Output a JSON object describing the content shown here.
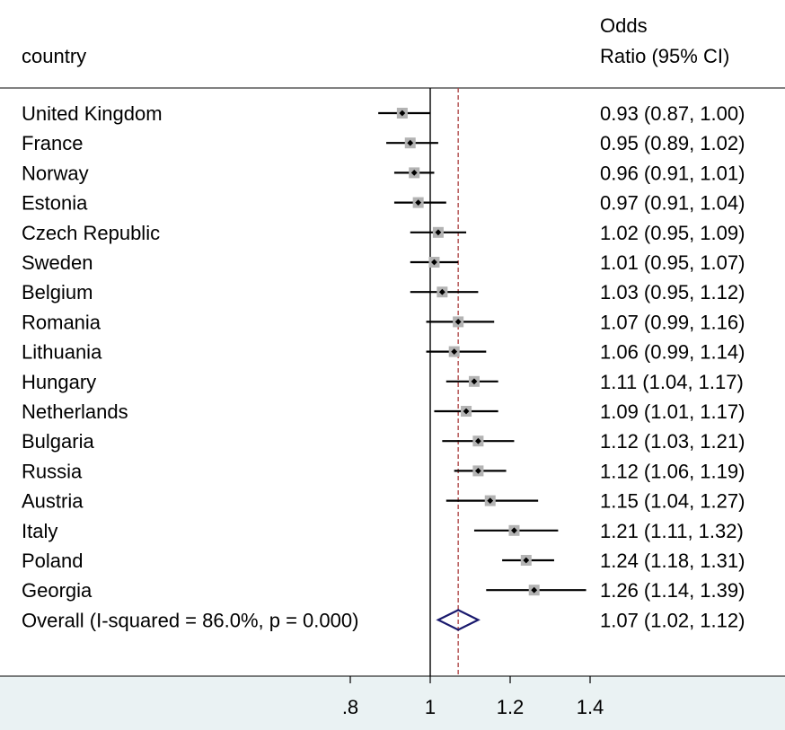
{
  "chart_data": {
    "type": "forest",
    "header": {
      "study_label": "country",
      "effect_label_line1": "Odds",
      "effect_label_line2": "Ratio (95% CI)"
    },
    "null_line": 1,
    "overall_line": 1.07,
    "xticks": [
      {
        "value": 0.8,
        "label": ".8"
      },
      {
        "value": 1,
        "label": "1"
      },
      {
        "value": 1.2,
        "label": "1.2"
      },
      {
        "value": 1.4,
        "label": "1.4"
      }
    ],
    "studies": [
      {
        "country": "United Kingdom",
        "or": 0.93,
        "lo": 0.87,
        "hi": 1.0,
        "ci_text": "0.93 (0.87, 1.00)"
      },
      {
        "country": "France",
        "or": 0.95,
        "lo": 0.89,
        "hi": 1.02,
        "ci_text": "0.95 (0.89, 1.02)"
      },
      {
        "country": "Norway",
        "or": 0.96,
        "lo": 0.91,
        "hi": 1.01,
        "ci_text": "0.96 (0.91, 1.01)"
      },
      {
        "country": "Estonia",
        "or": 0.97,
        "lo": 0.91,
        "hi": 1.04,
        "ci_text": "0.97 (0.91, 1.04)"
      },
      {
        "country": "Czech Republic",
        "or": 1.02,
        "lo": 0.95,
        "hi": 1.09,
        "ci_text": "1.02 (0.95, 1.09)"
      },
      {
        "country": "Sweden",
        "or": 1.01,
        "lo": 0.95,
        "hi": 1.07,
        "ci_text": "1.01 (0.95, 1.07)"
      },
      {
        "country": "Belgium",
        "or": 1.03,
        "lo": 0.95,
        "hi": 1.12,
        "ci_text": "1.03 (0.95, 1.12)"
      },
      {
        "country": "Romania",
        "or": 1.07,
        "lo": 0.99,
        "hi": 1.16,
        "ci_text": "1.07 (0.99, 1.16)"
      },
      {
        "country": "Lithuania",
        "or": 1.06,
        "lo": 0.99,
        "hi": 1.14,
        "ci_text": "1.06 (0.99, 1.14)"
      },
      {
        "country": "Hungary",
        "or": 1.11,
        "lo": 1.04,
        "hi": 1.17,
        "ci_text": "1.11 (1.04, 1.17)"
      },
      {
        "country": "Netherlands",
        "or": 1.09,
        "lo": 1.01,
        "hi": 1.17,
        "ci_text": "1.09 (1.01, 1.17)"
      },
      {
        "country": "Bulgaria",
        "or": 1.12,
        "lo": 1.03,
        "hi": 1.21,
        "ci_text": "1.12 (1.03, 1.21)"
      },
      {
        "country": "Russia",
        "or": 1.12,
        "lo": 1.06,
        "hi": 1.19,
        "ci_text": "1.12 (1.06, 1.19)"
      },
      {
        "country": "Austria",
        "or": 1.15,
        "lo": 1.04,
        "hi": 1.27,
        "ci_text": "1.15 (1.04, 1.27)"
      },
      {
        "country": "Italy",
        "or": 1.21,
        "lo": 1.11,
        "hi": 1.32,
        "ci_text": "1.21 (1.11, 1.32)"
      },
      {
        "country": "Poland",
        "or": 1.24,
        "lo": 1.18,
        "hi": 1.31,
        "ci_text": "1.24 (1.18, 1.31)"
      },
      {
        "country": "Georgia",
        "or": 1.26,
        "lo": 1.14,
        "hi": 1.39,
        "ci_text": "1.26 (1.14, 1.39)"
      }
    ],
    "overall": {
      "label": "Overall  (I-squared = 86.0%, p = 0.000)",
      "or": 1.07,
      "lo": 1.02,
      "hi": 1.12,
      "ci_text": "1.07 (1.02, 1.12)"
    },
    "colors": {
      "axis_band": "#eaf2f3",
      "ci_line": "#000000",
      "weight_box": "#b3b3b3",
      "point": "#000000",
      "null_line": "#000000",
      "overall_line": "#b04a4a",
      "diamond": "#1a1a6e"
    }
  }
}
